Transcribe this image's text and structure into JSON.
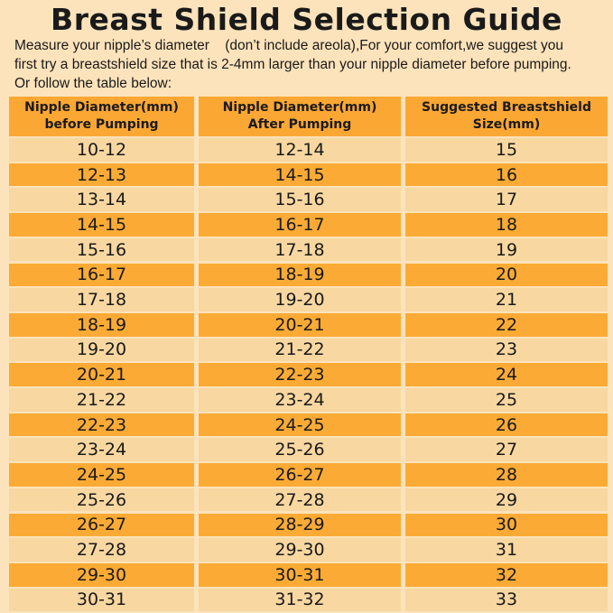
{
  "title": "Breast Shield Selection Guide",
  "intro": [
    "Measure your nipple’s diameter    (don’t include areola),For your comfort,we suggest you",
    "first try a breastshield size that is 2-4mm larger than your nipple diameter before pumping.",
    "Or follow the table below:"
  ],
  "table": {
    "header": [
      [
        "Nipple Diameter(mm)",
        "before Pumping"
      ],
      [
        "Nipple Diameter(mm)",
        "After Pumping"
      ],
      [
        "Suggested Breastshield",
        "Size(mm)"
      ]
    ],
    "rows": [
      [
        "10-12",
        "12-14",
        "15"
      ],
      [
        "12-13",
        "14-15",
        "16"
      ],
      [
        "13-14",
        "15-16",
        "17"
      ],
      [
        "14-15",
        "16-17",
        "18"
      ],
      [
        "15-16",
        "17-18",
        "19"
      ],
      [
        "16-17",
        "18-19",
        "20"
      ],
      [
        "17-18",
        "19-20",
        "21"
      ],
      [
        "18-19",
        "20-21",
        "22"
      ],
      [
        "19-20",
        "21-22",
        "23"
      ],
      [
        "20-21",
        "22-23",
        "24"
      ],
      [
        "21-22",
        "23-24",
        "25"
      ],
      [
        "22-23",
        "24-25",
        "26"
      ],
      [
        "23-24",
        "25-26",
        "27"
      ],
      [
        "24-25",
        "26-27",
        "28"
      ],
      [
        "25-26",
        "27-28",
        "29"
      ],
      [
        "26-27",
        "28-29",
        "30"
      ],
      [
        "27-28",
        "29-30",
        "31"
      ],
      [
        "29-30",
        "30-31",
        "32"
      ],
      [
        "30-31",
        "31-32",
        "33"
      ]
    ]
  }
}
